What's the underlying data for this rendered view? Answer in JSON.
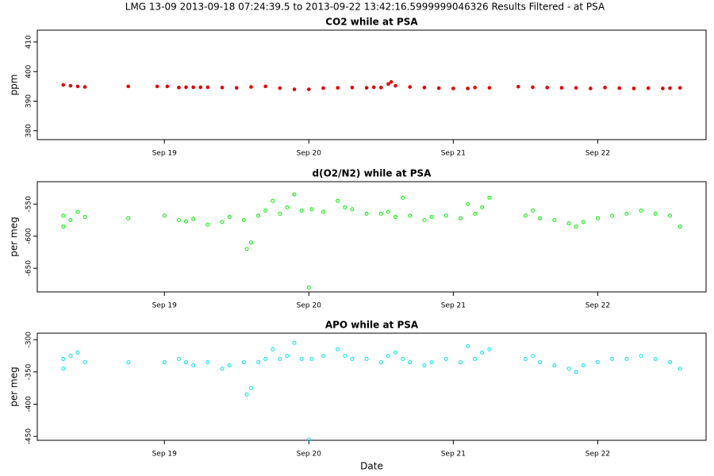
{
  "title": "LMG   13-09    2013-09-18 07:24:39.5 to 2013-09-22 13:42:16.5999999046326   Results Filtered - at PSA",
  "chart_data": [
    {
      "type": "scatter",
      "title": "CO2 while at PSA",
      "ylabel": "ppm",
      "color": "#e00000",
      "filled": true,
      "xlim": [
        18.12,
        22.75
      ],
      "xticks": [
        {
          "value": 19,
          "label": "Sep 19"
        },
        {
          "value": 20,
          "label": "Sep 20"
        },
        {
          "value": 21,
          "label": "Sep 21"
        },
        {
          "value": 22,
          "label": "Sep 22"
        }
      ],
      "ylim": [
        377,
        414
      ],
      "yticks": [
        380,
        390,
        400,
        410
      ],
      "x": [
        18.3,
        18.35,
        18.4,
        18.45,
        18.75,
        18.95,
        19.02,
        19.1,
        19.15,
        19.2,
        19.25,
        19.3,
        19.4,
        19.5,
        19.6,
        19.7,
        19.8,
        19.9,
        20.0,
        20.1,
        20.2,
        20.3,
        20.4,
        20.45,
        20.5,
        20.55,
        20.57,
        20.6,
        20.7,
        20.8,
        20.9,
        21.0,
        21.1,
        21.15,
        21.25,
        21.45,
        21.55,
        21.65,
        21.75,
        21.85,
        21.95,
        22.05,
        22.15,
        22.25,
        22.35,
        22.45,
        22.5,
        22.57
      ],
      "y": [
        395.5,
        395.2,
        395,
        394.8,
        395,
        395,
        395,
        394.6,
        394.7,
        394.7,
        394.7,
        394.7,
        394.6,
        394.5,
        394.8,
        395,
        394.4,
        394,
        394,
        394.4,
        394.5,
        394.6,
        394.5,
        394.7,
        394.6,
        395.8,
        396.5,
        395.2,
        394.8,
        394.6,
        394.4,
        394.3,
        394.3,
        394.6,
        394.5,
        394.9,
        394.7,
        394.6,
        394.5,
        394.5,
        394.3,
        394.6,
        394.4,
        394.3,
        394.4,
        394.3,
        394.4,
        394.5
      ]
    },
    {
      "type": "scatter",
      "title": "d(O2/N2) while at PSA",
      "ylabel": "per meg",
      "color": "#00ee00",
      "filled": false,
      "xlim": [
        18.12,
        22.75
      ],
      "xticks": [
        {
          "value": 19,
          "label": "Sep 19"
        },
        {
          "value": 20,
          "label": "Sep 20"
        },
        {
          "value": 21,
          "label": "Sep 21"
        },
        {
          "value": 22,
          "label": "Sep 22"
        }
      ],
      "ylim": [
        -687,
        -515
      ],
      "yticks": [
        -650,
        -600,
        -550
      ],
      "x": [
        18.3,
        18.3,
        18.35,
        18.4,
        18.45,
        18.75,
        19.0,
        19.1,
        19.15,
        19.2,
        19.3,
        19.4,
        19.45,
        19.55,
        19.57,
        19.6,
        19.65,
        19.7,
        19.75,
        19.8,
        19.85,
        19.9,
        19.95,
        20.0,
        20.02,
        20.1,
        20.2,
        20.25,
        20.3,
        20.4,
        20.5,
        20.55,
        20.6,
        20.65,
        20.7,
        20.8,
        20.85,
        20.95,
        21.05,
        21.1,
        21.15,
        21.2,
        21.25,
        21.5,
        21.55,
        21.6,
        21.7,
        21.8,
        21.85,
        21.9,
        22.0,
        22.1,
        22.2,
        22.3,
        22.4,
        22.5,
        22.57
      ],
      "y": [
        -568,
        -585,
        -575,
        -562,
        -570,
        -572,
        -568,
        -575,
        -577,
        -573,
        -582,
        -578,
        -570,
        -575,
        -620,
        -610,
        -568,
        -560,
        -545,
        -565,
        -555,
        -535,
        -560,
        -680,
        -558,
        -562,
        -545,
        -555,
        -558,
        -565,
        -565,
        -562,
        -570,
        -540,
        -568,
        -575,
        -570,
        -568,
        -572,
        -550,
        -565,
        -555,
        -540,
        -568,
        -560,
        -572,
        -575,
        -580,
        -585,
        -578,
        -572,
        -568,
        -565,
        -560,
        -565,
        -568,
        -585
      ]
    },
    {
      "type": "scatter",
      "title": "APO while at PSA",
      "ylabel": "per meg",
      "xlabel": "Date",
      "color": "#00e5ee",
      "filled": false,
      "xlim": [
        18.12,
        22.75
      ],
      "xticks": [
        {
          "value": 19,
          "label": "Sep 19"
        },
        {
          "value": 20,
          "label": "Sep 20"
        },
        {
          "value": 21,
          "label": "Sep 21"
        },
        {
          "value": 22,
          "label": "Sep 22"
        }
      ],
      "ylim": [
        -456,
        -290
      ],
      "yticks": [
        -450,
        -400,
        -350,
        -300
      ],
      "x": [
        18.3,
        18.3,
        18.35,
        18.4,
        18.45,
        18.75,
        19.0,
        19.1,
        19.15,
        19.2,
        19.3,
        19.4,
        19.45,
        19.55,
        19.57,
        19.6,
        19.65,
        19.7,
        19.75,
        19.8,
        19.85,
        19.9,
        19.95,
        20.0,
        20.02,
        20.1,
        20.2,
        20.25,
        20.3,
        20.4,
        20.5,
        20.55,
        20.6,
        20.65,
        20.7,
        20.8,
        20.85,
        20.95,
        21.05,
        21.1,
        21.15,
        21.2,
        21.25,
        21.5,
        21.55,
        21.6,
        21.7,
        21.8,
        21.85,
        21.9,
        22.0,
        22.1,
        22.2,
        22.3,
        22.4,
        22.5,
        22.57
      ],
      "y": [
        -330,
        -345,
        -325,
        -320,
        -335,
        -335,
        -335,
        -330,
        -335,
        -340,
        -335,
        -345,
        -340,
        -335,
        -385,
        -375,
        -335,
        -330,
        -315,
        -330,
        -325,
        -305,
        -330,
        -455,
        -330,
        -325,
        -315,
        -325,
        -330,
        -330,
        -335,
        -325,
        -320,
        -330,
        -335,
        -340,
        -335,
        -330,
        -335,
        -310,
        -330,
        -320,
        -315,
        -330,
        -325,
        -335,
        -340,
        -345,
        -350,
        -340,
        -335,
        -330,
        -330,
        -325,
        -330,
        -335,
        -345
      ]
    }
  ]
}
